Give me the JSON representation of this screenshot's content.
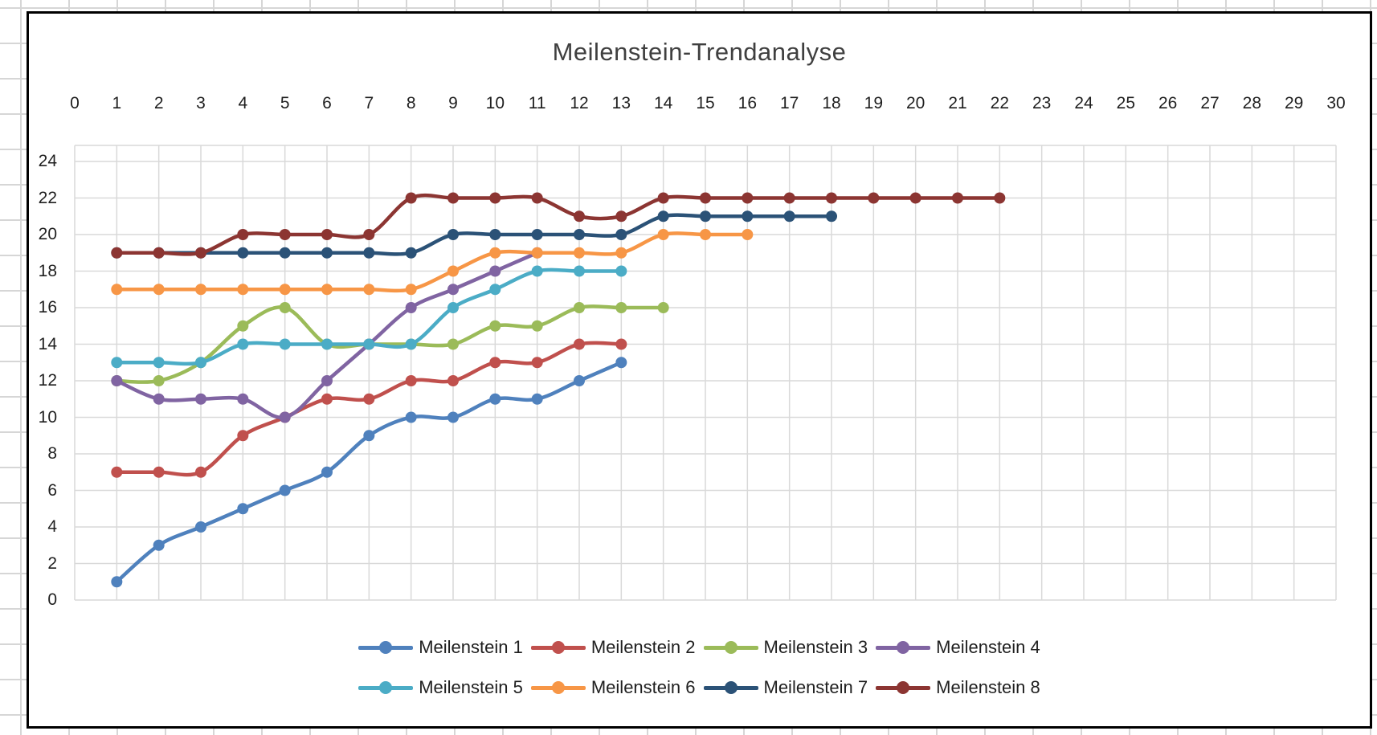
{
  "title": "Meilenstein-Trendanalyse",
  "colors": {
    "chart_border": "#000000",
    "chart_background": "#ffffff",
    "plot_gridline": "#d9d9d9",
    "sheet_gridline": "#d6d6d6",
    "axis_text": "#1f1f1f",
    "title_text": "#3f3f3f"
  },
  "chart_data": {
    "type": "line",
    "title": "Meilenstein-Trendanalyse",
    "smoothed": true,
    "grid": true,
    "legend_position": "bottom",
    "legend_rows": 2,
    "x_axis": {
      "position": "top",
      "range": [
        0,
        30
      ],
      "ticks": [
        0,
        1,
        2,
        3,
        4,
        5,
        6,
        7,
        8,
        9,
        10,
        11,
        12,
        13,
        14,
        15,
        16,
        17,
        18,
        19,
        20,
        21,
        22,
        23,
        24,
        25,
        26,
        27,
        28,
        29,
        30
      ]
    },
    "y_axis": {
      "position": "left",
      "range": [
        0,
        24
      ],
      "ticks": [
        0,
        2,
        4,
        6,
        8,
        10,
        12,
        14,
        16,
        18,
        20,
        22,
        24
      ]
    },
    "series": [
      {
        "name": "Meilenstein 1",
        "color": "#4F81BD",
        "points": [
          [
            1,
            1
          ],
          [
            2,
            3
          ],
          [
            3,
            4
          ],
          [
            4,
            5
          ],
          [
            5,
            6
          ],
          [
            6,
            7
          ],
          [
            7,
            9
          ],
          [
            8,
            10
          ],
          [
            9,
            10
          ],
          [
            10,
            11
          ],
          [
            11,
            11
          ],
          [
            12,
            12
          ],
          [
            13,
            13
          ]
        ]
      },
      {
        "name": "Meilenstein 2",
        "color": "#C0504D",
        "points": [
          [
            1,
            7
          ],
          [
            2,
            7
          ],
          [
            3,
            7
          ],
          [
            4,
            9
          ],
          [
            5,
            10
          ],
          [
            6,
            11
          ],
          [
            7,
            11
          ],
          [
            8,
            12
          ],
          [
            9,
            12
          ],
          [
            10,
            13
          ],
          [
            11,
            13
          ],
          [
            12,
            14
          ],
          [
            13,
            14
          ]
        ]
      },
      {
        "name": "Meilenstein 3",
        "color": "#9BBB59",
        "points": [
          [
            1,
            12
          ],
          [
            2,
            12
          ],
          [
            3,
            13
          ],
          [
            4,
            15
          ],
          [
            5,
            16
          ],
          [
            6,
            14
          ],
          [
            7,
            14
          ],
          [
            8,
            14
          ],
          [
            9,
            14
          ],
          [
            10,
            15
          ],
          [
            11,
            15
          ],
          [
            12,
            16
          ],
          [
            13,
            16
          ],
          [
            14,
            16
          ]
        ]
      },
      {
        "name": "Meilenstein 4",
        "color": "#8064A2",
        "points": [
          [
            1,
            12
          ],
          [
            2,
            11
          ],
          [
            3,
            11
          ],
          [
            4,
            11
          ],
          [
            5,
            10
          ],
          [
            6,
            12
          ],
          [
            7,
            14
          ],
          [
            8,
            16
          ],
          [
            9,
            17
          ],
          [
            10,
            18
          ],
          [
            11,
            19
          ]
        ]
      },
      {
        "name": "Meilenstein 5",
        "color": "#4BACC6",
        "points": [
          [
            1,
            13
          ],
          [
            2,
            13
          ],
          [
            3,
            13
          ],
          [
            4,
            14
          ],
          [
            5,
            14
          ],
          [
            6,
            14
          ],
          [
            7,
            14
          ],
          [
            8,
            14
          ],
          [
            9,
            16
          ],
          [
            10,
            17
          ],
          [
            11,
            18
          ],
          [
            12,
            18
          ],
          [
            13,
            18
          ]
        ]
      },
      {
        "name": "Meilenstein 6",
        "color": "#F79646",
        "points": [
          [
            1,
            17
          ],
          [
            2,
            17
          ],
          [
            3,
            17
          ],
          [
            4,
            17
          ],
          [
            5,
            17
          ],
          [
            6,
            17
          ],
          [
            7,
            17
          ],
          [
            8,
            17
          ],
          [
            9,
            18
          ],
          [
            10,
            19
          ],
          [
            11,
            19
          ],
          [
            12,
            19
          ],
          [
            13,
            19
          ],
          [
            14,
            20
          ],
          [
            15,
            20
          ],
          [
            16,
            20
          ]
        ]
      },
      {
        "name": "Meilenstein 7",
        "color": "#2B5277",
        "points": [
          [
            1,
            19
          ],
          [
            2,
            19
          ],
          [
            3,
            19
          ],
          [
            4,
            19
          ],
          [
            5,
            19
          ],
          [
            6,
            19
          ],
          [
            7,
            19
          ],
          [
            8,
            19
          ],
          [
            9,
            20
          ],
          [
            10,
            20
          ],
          [
            11,
            20
          ],
          [
            12,
            20
          ],
          [
            13,
            20
          ],
          [
            14,
            21
          ],
          [
            15,
            21
          ],
          [
            16,
            21
          ],
          [
            17,
            21
          ],
          [
            18,
            21
          ]
        ]
      },
      {
        "name": "Meilenstein 8",
        "color": "#8C3532",
        "points": [
          [
            1,
            19
          ],
          [
            2,
            19
          ],
          [
            3,
            19
          ],
          [
            4,
            20
          ],
          [
            5,
            20
          ],
          [
            6,
            20
          ],
          [
            7,
            20
          ],
          [
            8,
            22
          ],
          [
            9,
            22
          ],
          [
            10,
            22
          ],
          [
            11,
            22
          ],
          [
            12,
            21
          ],
          [
            13,
            21
          ],
          [
            14,
            22
          ],
          [
            15,
            22
          ],
          [
            16,
            22
          ],
          [
            17,
            22
          ],
          [
            18,
            22
          ],
          [
            19,
            22
          ],
          [
            20,
            22
          ],
          [
            21,
            22
          ],
          [
            22,
            22
          ]
        ]
      }
    ]
  }
}
